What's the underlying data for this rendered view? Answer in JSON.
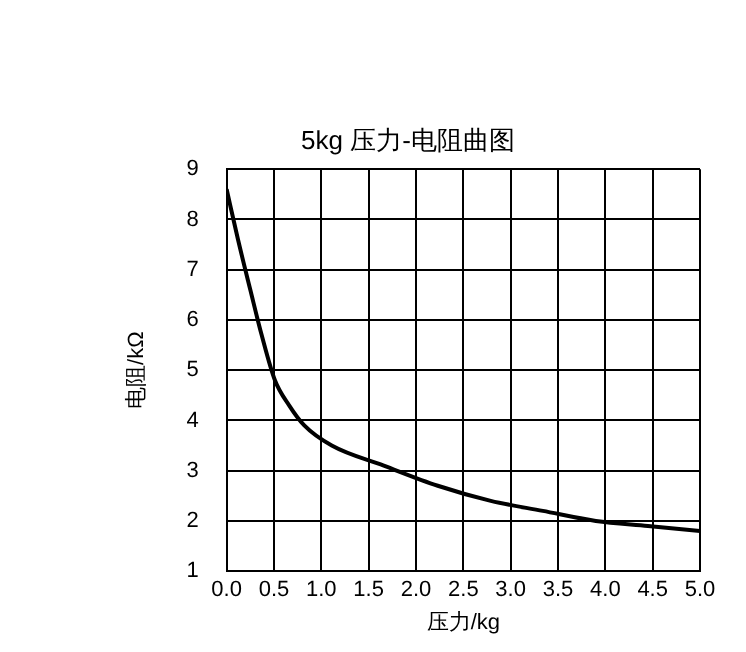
{
  "chart_data": {
    "type": "line",
    "title": "5kg 压力-电阻曲图",
    "xlabel": "压力/kg",
    "ylabel": "电阻/kΩ",
    "x": [
      0,
      0.12,
      0.25,
      0.37,
      0.51,
      0.66,
      0.82,
      1.11,
      1.66,
      2.23,
      2.79,
      3.34,
      3.9,
      4.45,
      5.0
    ],
    "series": [
      {
        "color": "#000000",
        "values": [
          8.6,
          7.6,
          6.6,
          5.7,
          4.8,
          4.3,
          3.9,
          3.5,
          3.1,
          2.7,
          2.4,
          2.2,
          2.0,
          1.9,
          1.8
        ]
      }
    ],
    "xlim": [
      0,
      5
    ],
    "xticks": [
      {
        "value": 0,
        "label": "0.0"
      },
      {
        "value": 0.5,
        "label": "0.5"
      },
      {
        "value": 1,
        "label": "1.0"
      },
      {
        "value": 1.5,
        "label": "1.5"
      },
      {
        "value": 2,
        "label": "2.0"
      },
      {
        "value": 2.5,
        "label": "2.5"
      },
      {
        "value": 3,
        "label": "3.0"
      },
      {
        "value": 3.5,
        "label": "3.5"
      },
      {
        "value": 4,
        "label": "4.0"
      },
      {
        "value": 4.5,
        "label": "4.5"
      },
      {
        "value": 5,
        "label": "5.0"
      }
    ],
    "ylim": [
      1,
      9
    ],
    "yticks": [
      1,
      2,
      3,
      4,
      5,
      6,
      7,
      8,
      9
    ],
    "grid": true,
    "legend": false,
    "marker": "none",
    "line_style": "solid"
  }
}
